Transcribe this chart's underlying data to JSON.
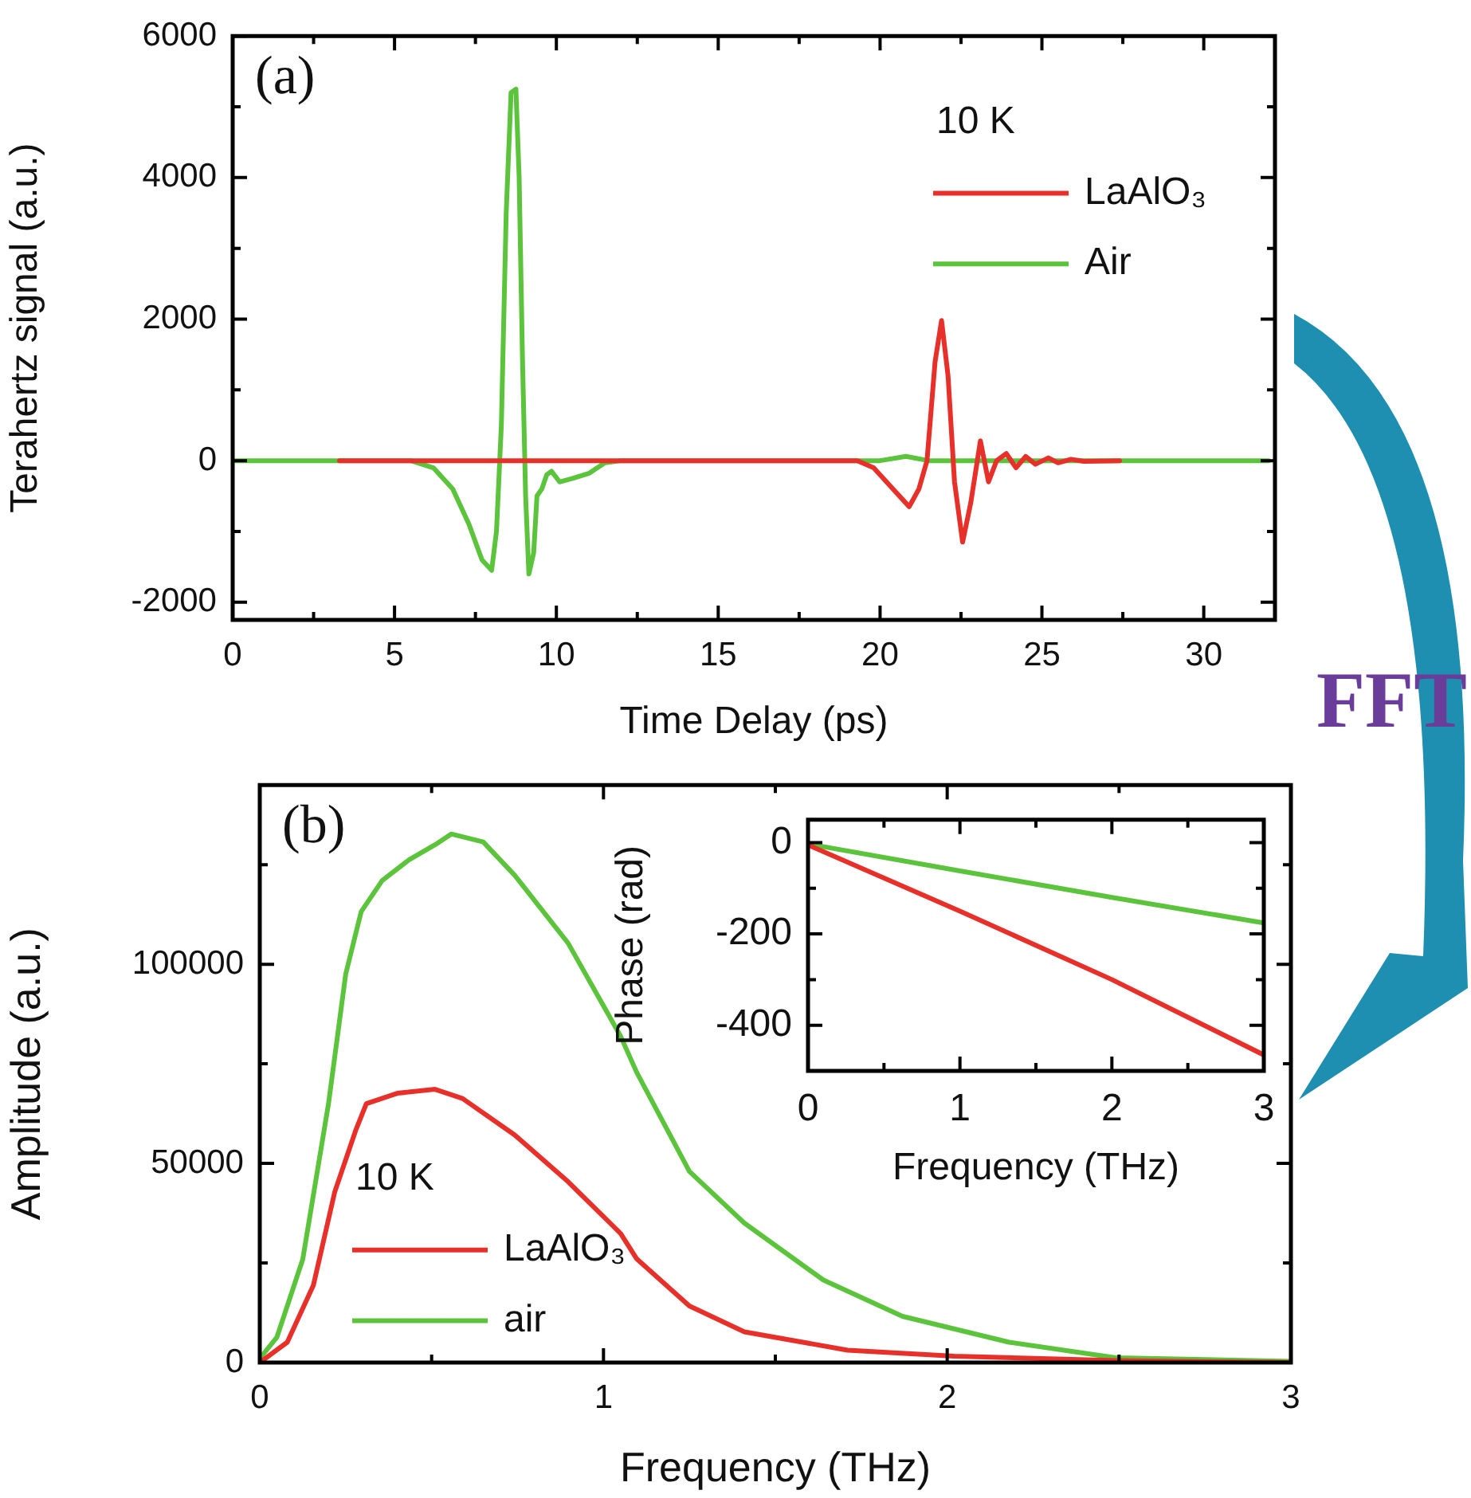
{
  "chart_data": [
    {
      "type": "line",
      "xlabel": "Time Delay (ps)",
      "ylabel": "Terahertz signal (a.u.)",
      "legend_title": "10 K",
      "legend": "top right",
      "annotations": [
        "(a)",
        "FFT"
      ],
      "xlim": [
        0,
        32.2
      ],
      "ylim": [
        -2250,
        6000
      ],
      "xticks": [
        0,
        {
          "value": 2.5,
          "label": null
        },
        5,
        {
          "value": 7.5,
          "label": null
        },
        10,
        {
          "value": 12.5,
          "label": null
        },
        15,
        {
          "value": 17.5,
          "label": null
        },
        20,
        {
          "value": 22.5,
          "label": null
        },
        25,
        {
          "value": 27.5,
          "label": null
        },
        30
      ],
      "yticks": [
        -2000,
        {
          "value": -1000,
          "label": null
        },
        0,
        {
          "value": 1000,
          "label": null
        },
        2000,
        {
          "value": 3000,
          "label": null
        },
        4000,
        {
          "value": 5000,
          "label": null
        },
        6000
      ],
      "series": [
        {
          "name": "LaAlO₃",
          "color": "#e8302a",
          "x": [
            3.3,
            19.3,
            19.8,
            20.4,
            20.9,
            21.2,
            21.45,
            21.7,
            21.9,
            22.1,
            22.3,
            22.55,
            22.8,
            23.1,
            23.35,
            23.6,
            23.9,
            24.2,
            24.5,
            24.8,
            25.2,
            25.5,
            25.9,
            26.3,
            27.4
          ],
          "values": [
            0,
            0,
            -100,
            -400,
            -650,
            -400,
            0,
            1400,
            1980,
            1200,
            -300,
            -1150,
            -600,
            280,
            -300,
            0,
            100,
            -100,
            60,
            -50,
            40,
            -30,
            20,
            -10,
            0
          ]
        },
        {
          "name": "Air",
          "color": "#5cc43c",
          "x": [
            0,
            5.5,
            6.2,
            6.8,
            7.3,
            7.7,
            8.0,
            8.15,
            8.3,
            8.45,
            8.6,
            8.75,
            8.85,
            8.95,
            9.05,
            9.15,
            9.3,
            9.4,
            9.55,
            9.7,
            9.85,
            10.1,
            10.5,
            11.0,
            11.5,
            12,
            20,
            20.8,
            21.5,
            32
          ],
          "values": [
            0,
            0,
            -100,
            -400,
            -900,
            -1400,
            -1550,
            -1000,
            500,
            3500,
            5200,
            5250,
            4000,
            1500,
            -500,
            -1600,
            -1300,
            -500,
            -400,
            -200,
            -150,
            -300,
            -250,
            -180,
            -30,
            0,
            0,
            60,
            0,
            0
          ]
        }
      ]
    },
    {
      "type": "line",
      "xlabel": "Frequency (THz)",
      "ylabel": "Amplitude (a.u.)",
      "legend_title": "10 K",
      "legend": "bottom left",
      "annotations": [
        "(b)"
      ],
      "xlim": [
        0,
        3
      ],
      "ylim": [
        0,
        145000
      ],
      "xticks": [
        0,
        {
          "value": 0.5,
          "label": null
        },
        1,
        {
          "value": 1.5,
          "label": null
        },
        2,
        {
          "value": 2.5,
          "label": null
        },
        3
      ],
      "yticks": [
        0,
        {
          "value": 25000,
          "label": null
        },
        50000,
        {
          "value": 75000,
          "label": null
        },
        100000,
        {
          "value": 125000,
          "label": null
        }
      ],
      "series": [
        {
          "name": "LaAlO₃",
          "color": "#e8302a",
          "x": [
            0,
            0.08,
            0.156,
            0.218,
            0.28,
            0.31,
            0.4,
            0.51,
            0.59,
            0.742,
            0.897,
            1.05,
            1.097,
            1.25,
            1.41,
            1.71,
            2.02,
            2.49,
            3
          ],
          "values": [
            0,
            5100,
            19400,
            42800,
            58500,
            65000,
            67600,
            68600,
            66300,
            57100,
            45400,
            32400,
            26000,
            14200,
            7700,
            3100,
            1600,
            500,
            0
          ]
        },
        {
          "name": "air",
          "color": "#5cc43c",
          "x": [
            0,
            0.05,
            0.125,
            0.2,
            0.25,
            0.295,
            0.356,
            0.434,
            0.51,
            0.557,
            0.65,
            0.742,
            0.897,
            1.05,
            1.097,
            1.25,
            1.41,
            1.64,
            1.87,
            2.18,
            2.49,
            3
          ],
          "values": [
            1000,
            6400,
            25900,
            65000,
            97500,
            113200,
            121000,
            126200,
            130000,
            132700,
            130700,
            122300,
            105300,
            81900,
            72800,
            48000,
            35000,
            20700,
            11600,
            5100,
            1200,
            300
          ]
        }
      ]
    },
    {
      "type": "line",
      "xlabel": "Frequency (THz)",
      "ylabel": "Phase (rad)",
      "xlim": [
        0,
        3
      ],
      "ylim": [
        -500,
        50
      ],
      "xticks": [
        0,
        {
          "value": 0.5,
          "label": null
        },
        1,
        {
          "value": 1.5,
          "label": null
        },
        2,
        {
          "value": 2.5,
          "label": null
        },
        3
      ],
      "yticks": [
        {
          "value": -400,
          "label": "-400"
        },
        {
          "value": -300,
          "label": null
        },
        {
          "value": -200,
          "label": "-200"
        },
        {
          "value": -100,
          "label": null
        },
        0
      ],
      "series": [
        {
          "color": "#e8302a",
          "x": [
            0,
            1,
            2,
            3
          ],
          "values": [
            -5,
            -150,
            -300,
            -465
          ]
        },
        {
          "color": "#5cc43c",
          "x": [
            0,
            1,
            2,
            3
          ],
          "values": [
            -3,
            -62,
            -120,
            -176
          ]
        }
      ]
    }
  ]
}
